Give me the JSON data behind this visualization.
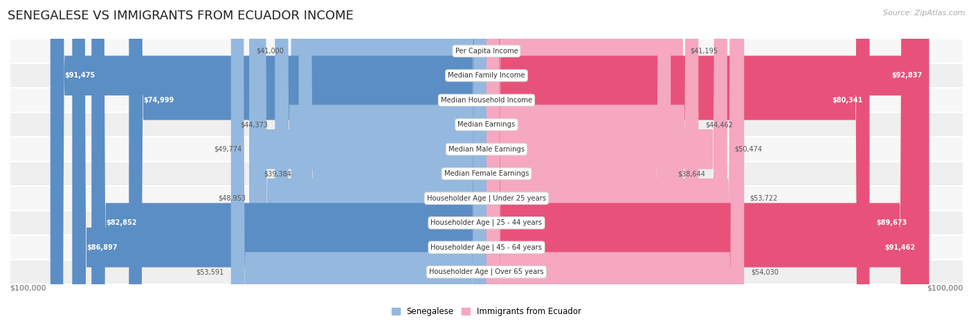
{
  "title": "SENEGALESE VS IMMIGRANTS FROM ECUADOR INCOME",
  "source": "Source: ZipAtlas.com",
  "categories": [
    "Per Capita Income",
    "Median Family Income",
    "Median Household Income",
    "Median Earnings",
    "Median Male Earnings",
    "Median Female Earnings",
    "Householder Age | Under 25 years",
    "Householder Age | 25 - 44 years",
    "Householder Age | 45 - 64 years",
    "Householder Age | Over 65 years"
  ],
  "senegalese_values": [
    41000,
    91475,
    74999,
    44373,
    49774,
    39384,
    48953,
    82852,
    86897,
    53591
  ],
  "ecuador_values": [
    41195,
    92837,
    80341,
    44462,
    50474,
    38644,
    53722,
    89673,
    91462,
    54030
  ],
  "senegalese_color": "#95b8de",
  "ecuador_color": "#f5a8c0",
  "senegalese_dark_color": "#5b8ec4",
  "ecuador_dark_color": "#e8527a",
  "axis_max": 100000,
  "background_color": "#ffffff",
  "row_bg_light": "#f7f7f7",
  "row_bg_dark": "#efefef",
  "label_inside_threshold": 60000,
  "title_fontsize": 13,
  "legend_labels": [
    "Senegalese",
    "Immigrants from Ecuador"
  ]
}
